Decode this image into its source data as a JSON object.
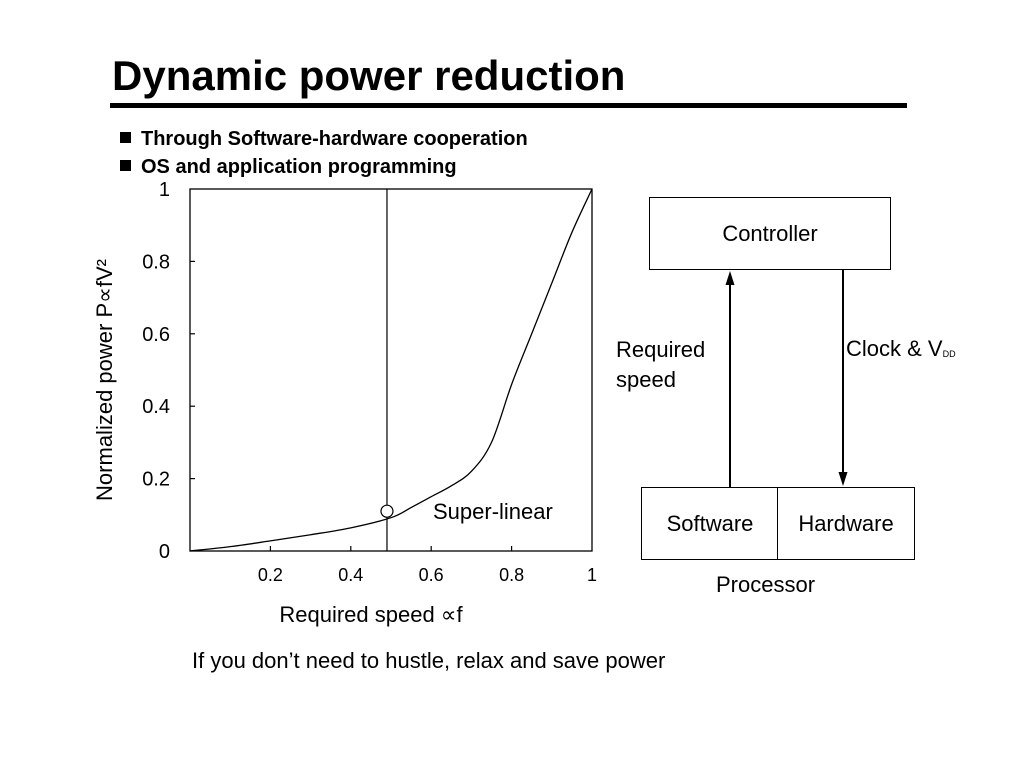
{
  "slide": {
    "title": "Dynamic power reduction",
    "bullets": [
      "Through Software-hardware cooperation",
      "OS and application programming"
    ],
    "caption": "If you don’t need to hustle, relax and save power"
  },
  "chart_data": {
    "type": "line",
    "xlabel": "Required speed ∝f",
    "ylabel": "Normalized power P∝fV²",
    "xlim": [
      0,
      1
    ],
    "ylim": [
      0,
      1
    ],
    "x_ticks": [
      "0.2",
      "0.4",
      "0.6",
      "0.8",
      "1"
    ],
    "y_ticks": [
      "0",
      "0.2",
      "0.4",
      "0.6",
      "0.8",
      "1"
    ],
    "grid": false,
    "series": [
      {
        "x": [
          0,
          0.1,
          0.2,
          0.3,
          0.4,
          0.5,
          0.55,
          0.6,
          0.65,
          0.7,
          0.75,
          0.8,
          0.85,
          0.9,
          0.95,
          1.0
        ],
        "y": [
          0,
          0.012,
          0.028,
          0.045,
          0.064,
          0.092,
          0.12,
          0.15,
          0.18,
          0.22,
          0.3,
          0.46,
          0.6,
          0.74,
          0.88,
          1.0
        ]
      }
    ],
    "vertical_line_x": 0.49,
    "marker_point": {
      "x": 0.49,
      "y": 0.11
    },
    "annotation": "Super-linear"
  },
  "diagram": {
    "controller": "Controller",
    "software": "Software",
    "hardware": "Hardware",
    "processor": "Processor",
    "required_speed": "Required\nspeed",
    "clock": "Clock & V",
    "clock_sub": "DD"
  }
}
